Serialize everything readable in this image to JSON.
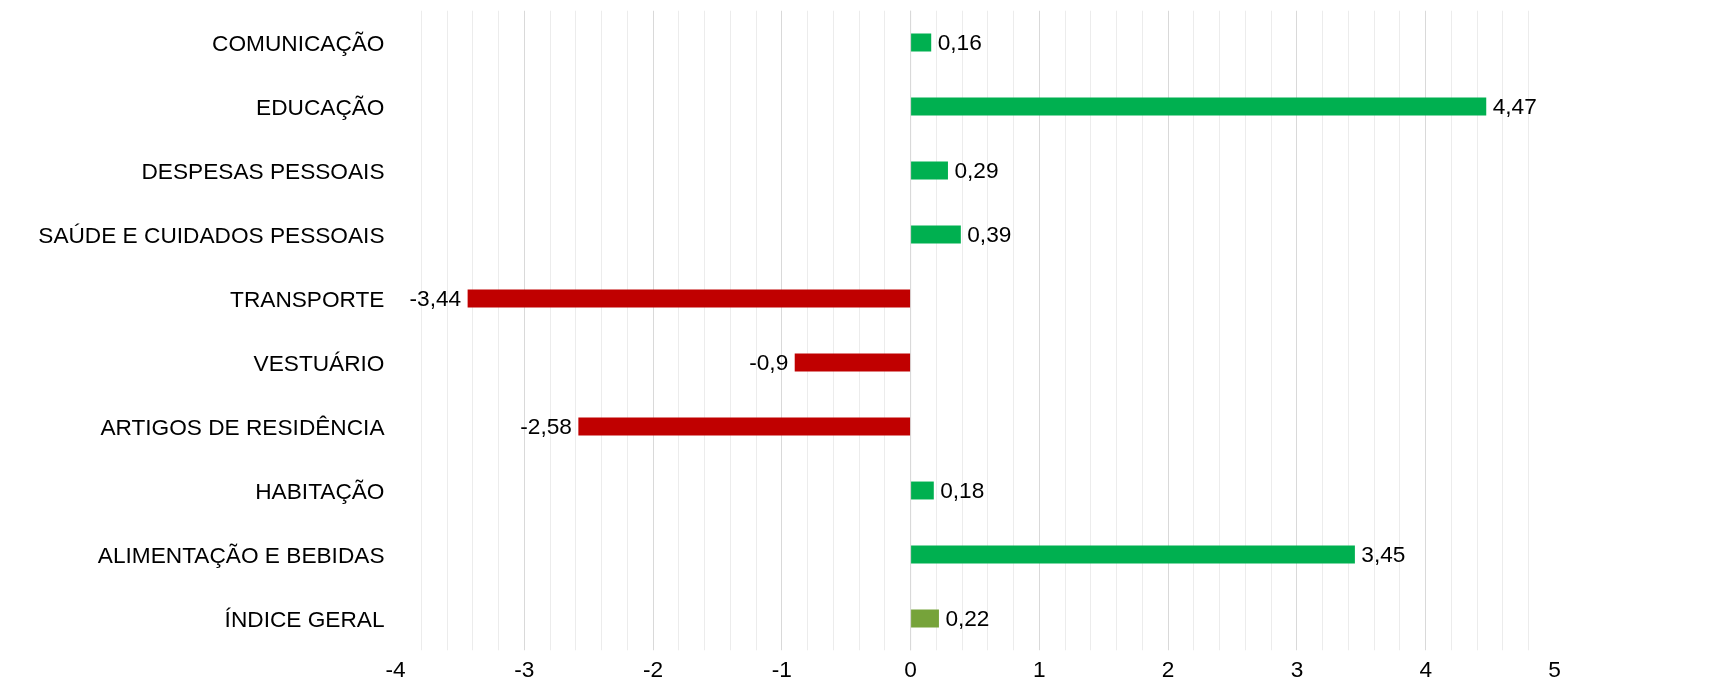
{
  "chart_data": {
    "type": "bar",
    "orientation": "horizontal",
    "categories": [
      "COMUNICAÇÃO",
      "EDUCAÇÃO",
      "DESPESAS PESSOAIS",
      "SAÚDE E CUIDADOS PESSOAIS",
      "TRANSPORTE",
      "VESTUÁRIO",
      "ARTIGOS DE RESIDÊNCIA",
      "HABITAÇÃO",
      "ALIMENTAÇÃO E BEBIDAS",
      "ÍNDICE GERAL"
    ],
    "values": [
      0.16,
      4.47,
      0.29,
      0.39,
      -3.44,
      -0.9,
      -2.58,
      0.18,
      3.45,
      0.22
    ],
    "value_labels": [
      "0,16",
      "4,47",
      "0,29",
      "0,39",
      "-3,44",
      "-0,9",
      "-2,58",
      "0,18",
      "3,45",
      "0,22"
    ],
    "colors": [
      "#00b050",
      "#00b050",
      "#00b050",
      "#00b050",
      "#c00000",
      "#c00000",
      "#c00000",
      "#00b050",
      "#00b050",
      "#76a33a"
    ],
    "xlim": [
      -4,
      5
    ],
    "xticks": [
      -4,
      -3,
      -2,
      -1,
      0,
      1,
      2,
      3,
      4,
      5
    ],
    "grid": "x"
  }
}
